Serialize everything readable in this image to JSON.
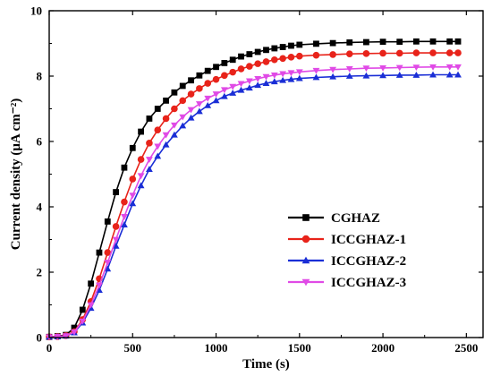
{
  "chart_data": {
    "type": "line",
    "title": "",
    "xlabel": "Time (s)",
    "ylabel": "Current density (μA cm⁻²)",
    "xlim": [
      0,
      2600
    ],
    "ylim": [
      0,
      10
    ],
    "xticks": [
      0,
      500,
      1000,
      1500,
      2000,
      2500
    ],
    "yticks": [
      0,
      2,
      4,
      6,
      8,
      10
    ],
    "legend_position": "center-right",
    "grid": false,
    "series": [
      {
        "name": "CGHAZ",
        "color": "#000000",
        "marker": "square",
        "points": [
          [
            0,
            0.02
          ],
          [
            50,
            0.04
          ],
          [
            100,
            0.08
          ],
          [
            150,
            0.3
          ],
          [
            200,
            0.85
          ],
          [
            250,
            1.65
          ],
          [
            300,
            2.6
          ],
          [
            350,
            3.55
          ],
          [
            400,
            4.45
          ],
          [
            450,
            5.2
          ],
          [
            500,
            5.8
          ],
          [
            550,
            6.3
          ],
          [
            600,
            6.7
          ],
          [
            650,
            7.0
          ],
          [
            700,
            7.25
          ],
          [
            750,
            7.5
          ],
          [
            800,
            7.7
          ],
          [
            850,
            7.87
          ],
          [
            900,
            8.02
          ],
          [
            950,
            8.16
          ],
          [
            1000,
            8.28
          ],
          [
            1050,
            8.4
          ],
          [
            1100,
            8.5
          ],
          [
            1150,
            8.6
          ],
          [
            1200,
            8.67
          ],
          [
            1250,
            8.74
          ],
          [
            1300,
            8.8
          ],
          [
            1350,
            8.85
          ],
          [
            1400,
            8.89
          ],
          [
            1450,
            8.93
          ],
          [
            1500,
            8.96
          ],
          [
            1600,
            8.99
          ],
          [
            1700,
            9.01
          ],
          [
            1800,
            9.03
          ],
          [
            1900,
            9.04
          ],
          [
            2000,
            9.05
          ],
          [
            2100,
            9.05
          ],
          [
            2200,
            9.06
          ],
          [
            2300,
            9.06
          ],
          [
            2400,
            9.06
          ],
          [
            2450,
            9.06
          ]
        ]
      },
      {
        "name": "ICCGHAZ-1",
        "color": "#e8231a",
        "marker": "circle",
        "points": [
          [
            0,
            0.02
          ],
          [
            50,
            0.03
          ],
          [
            100,
            0.06
          ],
          [
            150,
            0.18
          ],
          [
            200,
            0.55
          ],
          [
            250,
            1.1
          ],
          [
            300,
            1.8
          ],
          [
            350,
            2.6
          ],
          [
            400,
            3.4
          ],
          [
            450,
            4.15
          ],
          [
            500,
            4.85
          ],
          [
            550,
            5.45
          ],
          [
            600,
            5.95
          ],
          [
            650,
            6.35
          ],
          [
            700,
            6.7
          ],
          [
            750,
            7.0
          ],
          [
            800,
            7.25
          ],
          [
            850,
            7.45
          ],
          [
            900,
            7.62
          ],
          [
            950,
            7.78
          ],
          [
            1000,
            7.9
          ],
          [
            1050,
            8.02
          ],
          [
            1100,
            8.12
          ],
          [
            1150,
            8.22
          ],
          [
            1200,
            8.3
          ],
          [
            1250,
            8.38
          ],
          [
            1300,
            8.44
          ],
          [
            1350,
            8.5
          ],
          [
            1400,
            8.54
          ],
          [
            1450,
            8.58
          ],
          [
            1500,
            8.61
          ],
          [
            1600,
            8.64
          ],
          [
            1700,
            8.66
          ],
          [
            1800,
            8.68
          ],
          [
            1900,
            8.69
          ],
          [
            2000,
            8.7
          ],
          [
            2100,
            8.7
          ],
          [
            2200,
            8.71
          ],
          [
            2300,
            8.71
          ],
          [
            2400,
            8.71
          ],
          [
            2450,
            8.71
          ]
        ]
      },
      {
        "name": "ICCGHAZ-2",
        "color": "#1a2ed6",
        "marker": "triangle-up",
        "points": [
          [
            0,
            0.02
          ],
          [
            50,
            0.03
          ],
          [
            100,
            0.05
          ],
          [
            150,
            0.15
          ],
          [
            200,
            0.45
          ],
          [
            250,
            0.9
          ],
          [
            300,
            1.45
          ],
          [
            350,
            2.1
          ],
          [
            400,
            2.8
          ],
          [
            450,
            3.45
          ],
          [
            500,
            4.1
          ],
          [
            550,
            4.65
          ],
          [
            600,
            5.15
          ],
          [
            650,
            5.55
          ],
          [
            700,
            5.9
          ],
          [
            750,
            6.2
          ],
          [
            800,
            6.48
          ],
          [
            850,
            6.72
          ],
          [
            900,
            6.92
          ],
          [
            950,
            7.1
          ],
          [
            1000,
            7.25
          ],
          [
            1050,
            7.38
          ],
          [
            1100,
            7.48
          ],
          [
            1150,
            7.57
          ],
          [
            1200,
            7.64
          ],
          [
            1250,
            7.72
          ],
          [
            1300,
            7.78
          ],
          [
            1350,
            7.83
          ],
          [
            1400,
            7.87
          ],
          [
            1450,
            7.9
          ],
          [
            1500,
            7.93
          ],
          [
            1600,
            7.96
          ],
          [
            1700,
            7.98
          ],
          [
            1800,
            8.0
          ],
          [
            1900,
            8.01
          ],
          [
            2000,
            8.02
          ],
          [
            2100,
            8.03
          ],
          [
            2200,
            8.03
          ],
          [
            2300,
            8.04
          ],
          [
            2400,
            8.04
          ],
          [
            2450,
            8.04
          ]
        ]
      },
      {
        "name": "ICCGHAZ-3",
        "color": "#e04ae6",
        "marker": "triangle-down",
        "points": [
          [
            0,
            0.02
          ],
          [
            50,
            0.03
          ],
          [
            100,
            0.05
          ],
          [
            150,
            0.17
          ],
          [
            200,
            0.5
          ],
          [
            250,
            1.0
          ],
          [
            300,
            1.6
          ],
          [
            350,
            2.3
          ],
          [
            400,
            3.0
          ],
          [
            450,
            3.7
          ],
          [
            500,
            4.35
          ],
          [
            550,
            4.95
          ],
          [
            600,
            5.45
          ],
          [
            650,
            5.85
          ],
          [
            700,
            6.2
          ],
          [
            750,
            6.5
          ],
          [
            800,
            6.75
          ],
          [
            850,
            6.97
          ],
          [
            900,
            7.15
          ],
          [
            950,
            7.32
          ],
          [
            1000,
            7.45
          ],
          [
            1050,
            7.58
          ],
          [
            1100,
            7.68
          ],
          [
            1150,
            7.77
          ],
          [
            1200,
            7.85
          ],
          [
            1250,
            7.92
          ],
          [
            1300,
            7.98
          ],
          [
            1350,
            8.03
          ],
          [
            1400,
            8.07
          ],
          [
            1450,
            8.1
          ],
          [
            1500,
            8.13
          ],
          [
            1600,
            8.17
          ],
          [
            1700,
            8.2
          ],
          [
            1800,
            8.22
          ],
          [
            1900,
            8.24
          ],
          [
            2000,
            8.25
          ],
          [
            2100,
            8.26
          ],
          [
            2200,
            8.27
          ],
          [
            2300,
            8.28
          ],
          [
            2400,
            8.28
          ],
          [
            2450,
            8.28
          ]
        ]
      }
    ]
  }
}
